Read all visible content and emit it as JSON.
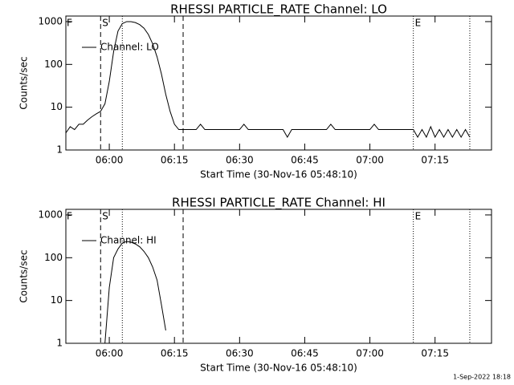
{
  "chart_data": [
    {
      "type": "line",
      "title": "RHESSI PARTICLE_RATE Channel: LO",
      "x_label": "Start Time (30-Nov-16 05:48:10)",
      "y_label": "Counts/sec",
      "log_scale": true,
      "xlim": [
        "05:50",
        "07:28"
      ],
      "ylim": [
        1,
        1350
      ],
      "xticks": [
        "06:00",
        "06:15",
        "06:30",
        "06:45",
        "07:00",
        "07:15"
      ],
      "yticks": [
        1,
        10,
        100,
        1000
      ],
      "x": [
        "05:50",
        "05:51",
        "05:52",
        "05:53",
        "05:54",
        "05:55",
        "05:56",
        "05:57",
        "05:58",
        "05:59",
        "06:00",
        "06:01",
        "06:02",
        "06:03",
        "06:04",
        "06:05",
        "06:06",
        "06:07",
        "06:08",
        "06:09",
        "06:10",
        "06:11",
        "06:12",
        "06:13",
        "06:14",
        "06:15",
        "06:16",
        "06:20",
        "06:21",
        "06:22",
        "06:30",
        "06:31",
        "06:32",
        "06:40",
        "06:41",
        "06:42",
        "06:50",
        "06:51",
        "06:52",
        "07:00",
        "07:01",
        "07:02",
        "07:10",
        "07:11",
        "07:12",
        "07:13",
        "07:14",
        "07:15",
        "07:16",
        "07:17",
        "07:18",
        "07:19",
        "07:20",
        "07:21",
        "07:22",
        "07:23"
      ],
      "series": [
        {
          "name": "Channel: LO",
          "color": "#000000",
          "values": [
            2.5,
            3.5,
            3,
            4,
            4,
            5,
            6,
            7,
            8,
            12,
            40,
            200,
            600,
            900,
            1000,
            1000,
            950,
            850,
            700,
            500,
            300,
            150,
            60,
            20,
            8,
            4,
            3,
            3,
            4,
            3,
            3,
            4,
            3,
            3,
            2,
            3,
            3,
            4,
            3,
            3,
            4,
            3,
            3,
            2,
            3,
            2,
            3.5,
            2,
            3,
            2,
            3,
            2,
            3,
            2,
            3,
            2
          ]
        }
      ],
      "vlines": [
        {
          "x": "05:58",
          "style": "dashed",
          "label": "S"
        },
        {
          "x": "06:03",
          "style": "dotted"
        },
        {
          "x": "06:17",
          "style": "dashed"
        },
        {
          "x": "07:10",
          "style": "dotted",
          "label": "E"
        },
        {
          "x": "07:23",
          "style": "dotted"
        }
      ],
      "flag": "F"
    },
    {
      "type": "line",
      "title": "RHESSI PARTICLE_RATE Channel: HI",
      "x_label": "Start Time (30-Nov-16 05:48:10)",
      "y_label": "Counts/sec",
      "log_scale": true,
      "xlim": [
        "05:50",
        "07:28"
      ],
      "ylim": [
        1,
        1350
      ],
      "xticks": [
        "06:00",
        "06:15",
        "06:30",
        "06:45",
        "07:00",
        "07:15"
      ],
      "yticks": [
        1,
        10,
        100,
        1000
      ],
      "x": [
        "05:59",
        "06:00",
        "06:01",
        "06:02",
        "06:03",
        "06:04",
        "06:05",
        "06:06",
        "06:07",
        "06:08",
        "06:09",
        "06:10",
        "06:11",
        "06:12",
        "06:13"
      ],
      "series": [
        {
          "name": "Channel: HI",
          "color": "#000000",
          "values": [
            1,
            20,
            100,
            160,
            220,
            240,
            230,
            210,
            180,
            140,
            100,
            60,
            30,
            8,
            2
          ]
        }
      ],
      "vlines": [
        {
          "x": "05:58",
          "style": "dashed",
          "label": "S"
        },
        {
          "x": "06:03",
          "style": "dotted"
        },
        {
          "x": "06:17",
          "style": "dashed"
        },
        {
          "x": "07:10",
          "style": "dotted",
          "label": "E"
        },
        {
          "x": "07:23",
          "style": "dotted"
        }
      ],
      "flag": "F"
    }
  ],
  "footer": "1-Sep-2022 18:18"
}
